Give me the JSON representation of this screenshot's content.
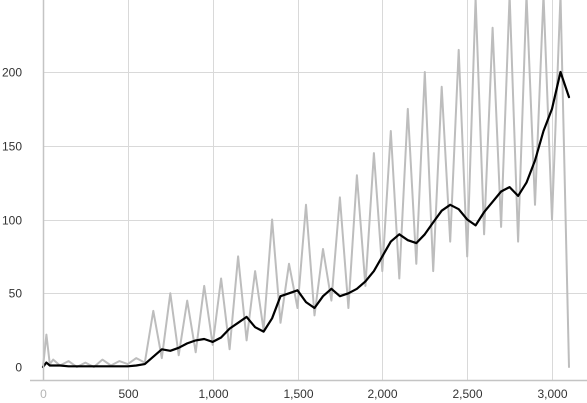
{
  "chart_data": {
    "type": "line",
    "title": "",
    "xlabel": "",
    "ylabel": "",
    "grid": true,
    "legend": "none",
    "xlim": [
      0,
      3130
    ],
    "ylim": [
      -3,
      250
    ],
    "x_ticks": [
      {
        "value": 0,
        "label": "0",
        "muted": true
      },
      {
        "value": 500,
        "label": "500",
        "muted": false
      },
      {
        "value": 1000,
        "label": "1,000",
        "muted": false
      },
      {
        "value": 1500,
        "label": "1,500",
        "muted": false
      },
      {
        "value": 2000,
        "label": "2,000",
        "muted": false
      },
      {
        "value": 2500,
        "label": "2,500",
        "muted": false
      },
      {
        "value": 3000,
        "label": "3,000",
        "muted": false
      }
    ],
    "y_ticks": [
      {
        "value": 0,
        "label": "0"
      },
      {
        "value": 50,
        "label": "50"
      },
      {
        "value": 100,
        "label": "100"
      },
      {
        "value": 150,
        "label": "150"
      },
      {
        "value": 200,
        "label": "200"
      }
    ],
    "colors": {
      "raw": "#bdbdbd",
      "smoothed": "#000000",
      "grid": "#d9d9d9",
      "axis": "#c4c4c4"
    },
    "raw_series": {
      "x": [
        0,
        20,
        40,
        60,
        100,
        150,
        200,
        250,
        300,
        350,
        400,
        450,
        500,
        550,
        600,
        650,
        700,
        750,
        800,
        850,
        900,
        950,
        1000,
        1050,
        1100,
        1150,
        1200,
        1250,
        1300,
        1350,
        1400,
        1450,
        1500,
        1550,
        1600,
        1650,
        1700,
        1750,
        1800,
        1850,
        1900,
        1950,
        2000,
        2050,
        2100,
        2150,
        2200,
        2250,
        2300,
        2350,
        2400,
        2450,
        2500,
        2550,
        2600,
        2650,
        2700,
        2750,
        2800,
        2850,
        2900,
        2950,
        3000,
        3050,
        3100
      ],
      "y": [
        0,
        22,
        2,
        5,
        1,
        4,
        0,
        3,
        0,
        5,
        1,
        4,
        2,
        6,
        3,
        38,
        6,
        50,
        8,
        45,
        10,
        55,
        15,
        60,
        12,
        75,
        18,
        65,
        25,
        100,
        30,
        70,
        40,
        110,
        35,
        80,
        45,
        115,
        40,
        130,
        55,
        145,
        65,
        160,
        60,
        175,
        70,
        200,
        65,
        190,
        85,
        215,
        75,
        250,
        90,
        230,
        95,
        260,
        85,
        270,
        110,
        280,
        100,
        300,
        0
      ]
    },
    "smoothed_series": {
      "x": [
        0,
        20,
        40,
        60,
        100,
        150,
        200,
        250,
        300,
        350,
        400,
        450,
        500,
        550,
        600,
        650,
        700,
        750,
        800,
        850,
        900,
        950,
        1000,
        1050,
        1100,
        1150,
        1200,
        1250,
        1300,
        1350,
        1400,
        1450,
        1500,
        1550,
        1600,
        1650,
        1700,
        1750,
        1800,
        1850,
        1900,
        1950,
        2000,
        2050,
        2100,
        2150,
        2200,
        2250,
        2300,
        2350,
        2400,
        2450,
        2500,
        2550,
        2600,
        2650,
        2700,
        2750,
        2800,
        2850,
        2900,
        2950,
        3000,
        3050,
        3100
      ],
      "y": [
        0,
        3,
        1,
        1,
        1,
        0.5,
        0.5,
        0.5,
        0.5,
        0.5,
        0.5,
        0.5,
        0.5,
        1,
        2,
        7,
        12,
        11,
        13,
        16,
        18,
        19,
        17,
        20,
        26,
        30,
        34,
        27,
        24,
        33,
        48,
        50,
        52,
        44,
        40,
        48,
        53,
        48,
        50,
        53,
        58,
        65,
        75,
        85,
        90,
        86,
        84,
        90,
        98,
        106,
        110,
        107,
        100,
        96,
        105,
        112,
        119,
        122,
        116,
        125,
        140,
        160,
        175,
        200,
        183
      ]
    }
  }
}
